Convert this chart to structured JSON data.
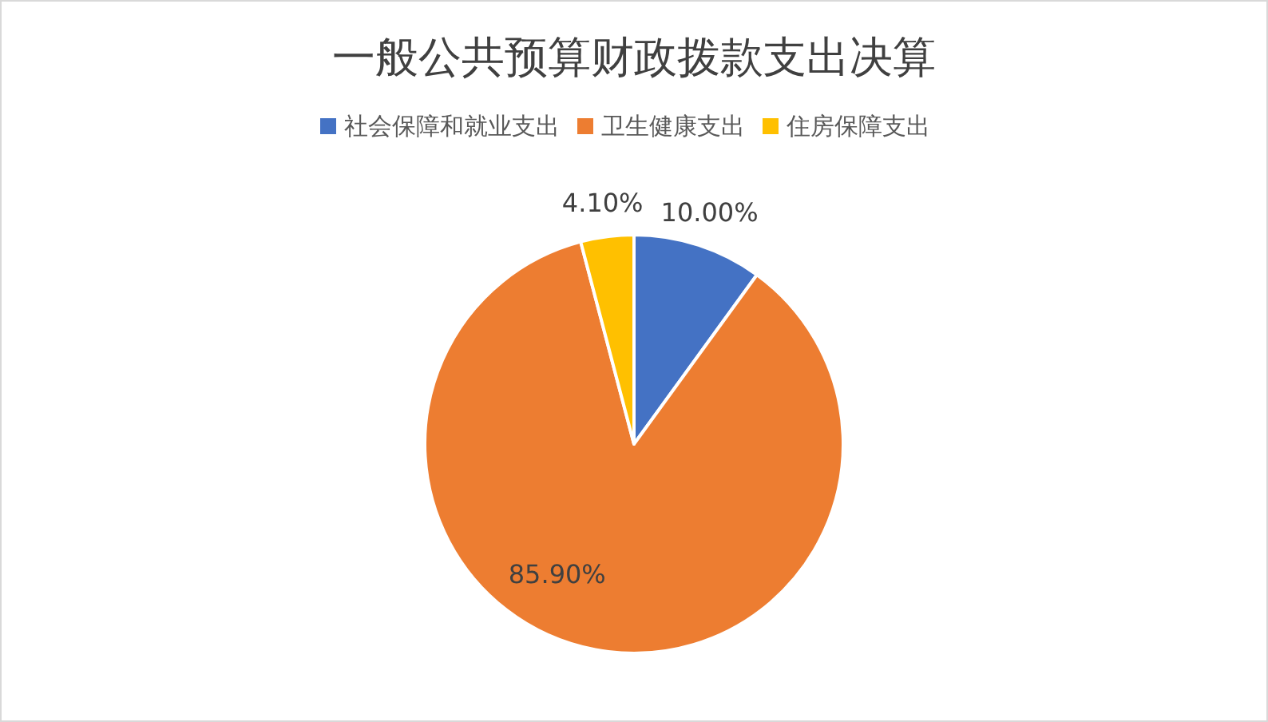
{
  "chart_data": {
    "type": "pie",
    "title": "一般公共预算财政拨款支出决算",
    "categories": [
      "社会保障和就业支出",
      "卫生健康支出",
      "住房保障支出"
    ],
    "values": [
      10.0,
      85.9,
      4.1
    ],
    "colors": [
      "#4472c4",
      "#ed7d31",
      "#ffc000"
    ],
    "value_labels": [
      "10.00%",
      "85.90%",
      "4.10%"
    ],
    "legend": "top"
  }
}
